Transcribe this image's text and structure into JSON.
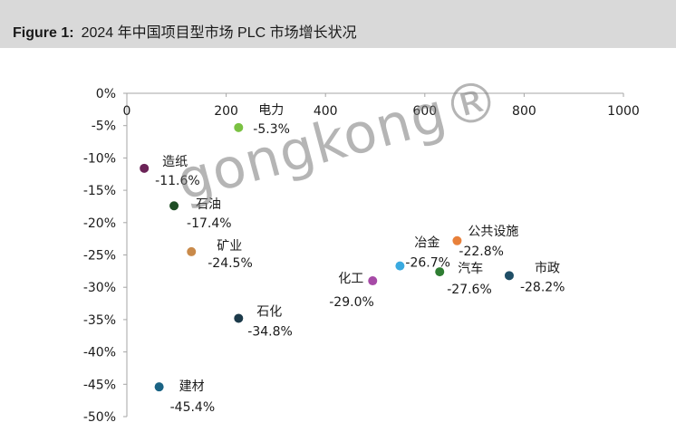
{
  "header": {
    "figure_label": "Figure 1:",
    "title": "2024 年中国项目型市场 PLC 市场增长状况"
  },
  "watermark": "gongkong®",
  "chart_data": {
    "type": "scatter",
    "title": "",
    "xlabel": "",
    "ylabel": "",
    "xlim": [
      0,
      1000
    ],
    "ylim": [
      -50,
      0
    ],
    "x_ticks": [
      0,
      200,
      400,
      600,
      800,
      1000
    ],
    "y_ticks": [
      0,
      -5,
      -10,
      -15,
      -20,
      -25,
      -30,
      -35,
      -40,
      -45,
      -50
    ],
    "x_tick_labels": [
      "0",
      "200",
      "400",
      "600",
      "800",
      "1000"
    ],
    "y_tick_labels": [
      "0%",
      "-5%",
      "-10%",
      "-15%",
      "-20%",
      "-25%",
      "-30%",
      "-35%",
      "-40%",
      "-45%",
      "-50%"
    ],
    "x_axis_position": "top",
    "grid": false,
    "points": [
      {
        "name": "电力",
        "value_label": "-5.3%",
        "x": 225,
        "y": -5.3,
        "color": "#7ac142"
      },
      {
        "name": "造纸",
        "value_label": "-11.6%",
        "x": 35,
        "y": -11.6,
        "color": "#6b2357"
      },
      {
        "name": "石油",
        "value_label": "-17.4%",
        "x": 95,
        "y": -17.4,
        "color": "#1e4d24"
      },
      {
        "name": "矿业",
        "value_label": "-24.5%",
        "x": 130,
        "y": -24.5,
        "color": "#c98a4a"
      },
      {
        "name": "石化",
        "value_label": "-34.8%",
        "x": 225,
        "y": -34.8,
        "color": "#1c3a4a"
      },
      {
        "name": "建材",
        "value_label": "-45.4%",
        "x": 65,
        "y": -45.4,
        "color": "#1a6384"
      },
      {
        "name": "化工",
        "value_label": "-29.0%",
        "x": 495,
        "y": -29.0,
        "color": "#a64aa6"
      },
      {
        "name": "冶金",
        "value_label": "-26.7%",
        "x": 550,
        "y": -26.7,
        "color": "#3aaae0"
      },
      {
        "name": "汽车",
        "value_label": "-27.6%",
        "x": 630,
        "y": -27.6,
        "color": "#2e7d32"
      },
      {
        "name": "公共设施",
        "value_label": "-22.8%",
        "x": 665,
        "y": -22.8,
        "color": "#e8803a"
      },
      {
        "name": "市政",
        "value_label": "-28.2%",
        "x": 770,
        "y": -28.2,
        "color": "#1f4e66"
      }
    ]
  }
}
